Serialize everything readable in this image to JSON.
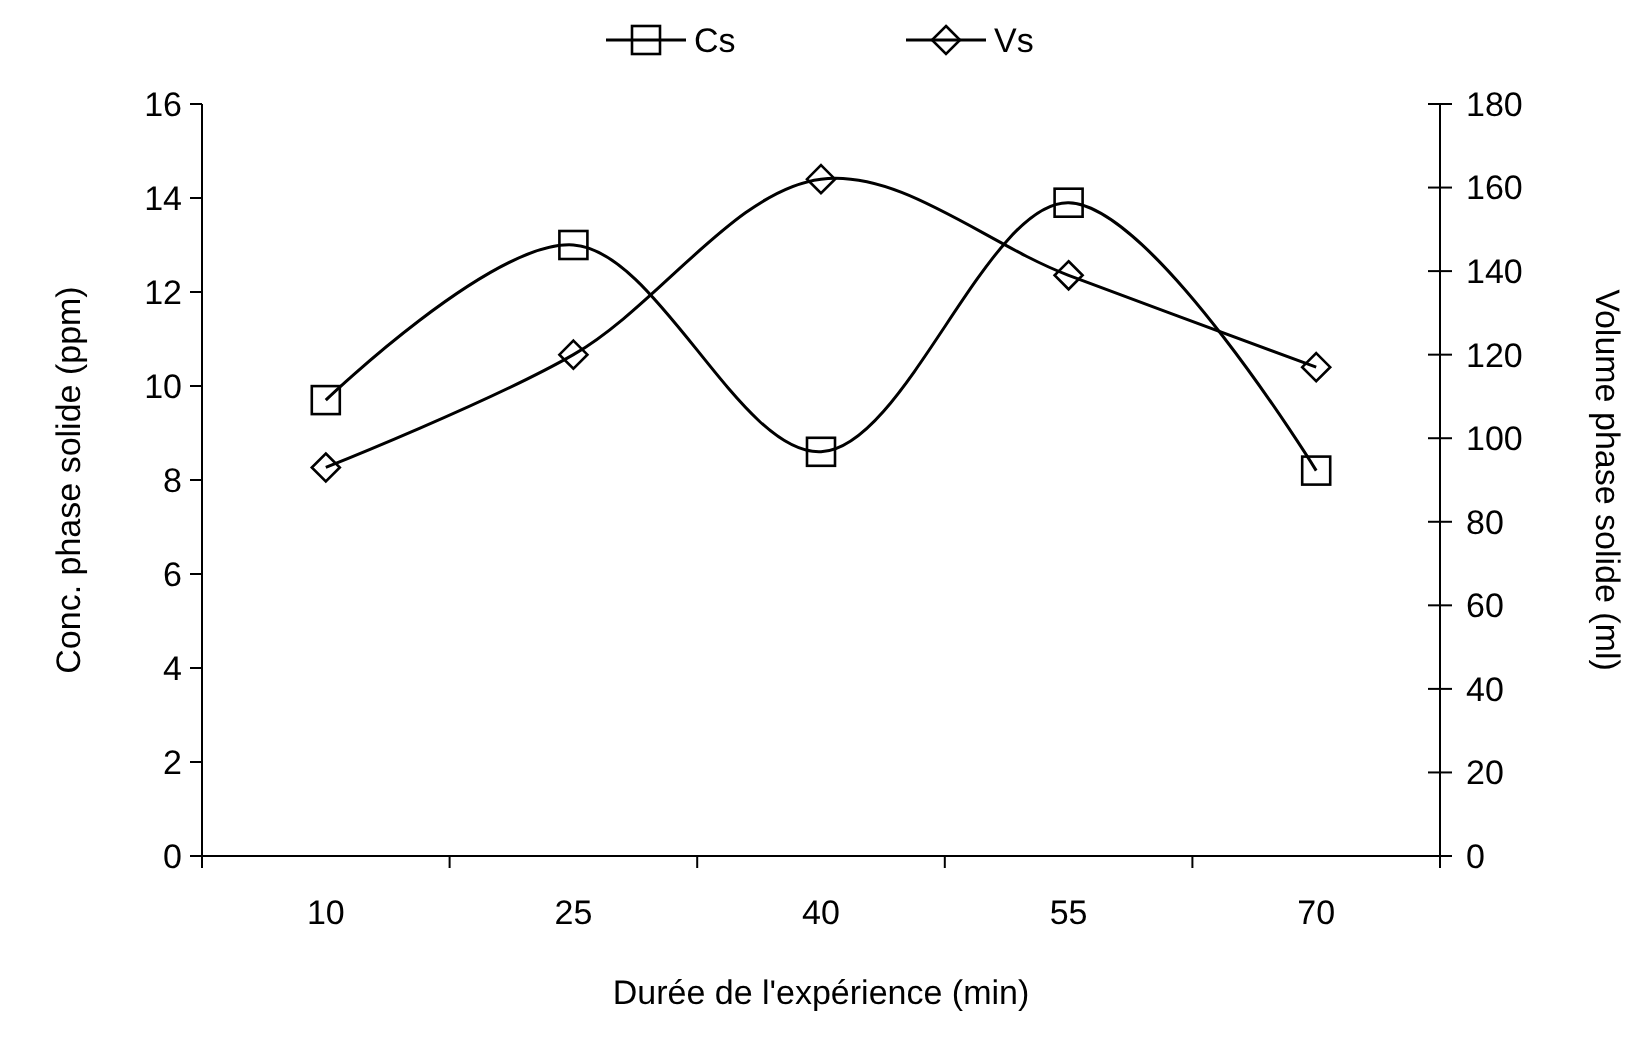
{
  "chart_data": {
    "type": "line",
    "xlabel": "Durée de l'expérience (min)",
    "ylabel": "Conc. phase solide (ppm)",
    "y2label": "Volume phase solide (ml)",
    "categories": [
      "10",
      "25",
      "40",
      "55",
      "70"
    ],
    "series": [
      {
        "name": "Cs",
        "color": "#000000",
        "marker": "square",
        "values": [
          9.7,
          13.0,
          8.6,
          13.9,
          8.2
        ]
      },
      {
        "name": "Vs",
        "color": "#000000",
        "marker": "diamond",
        "axis": "y2",
        "values": [
          93,
          120,
          162,
          139,
          117
        ]
      }
    ],
    "ylim": [
      0,
      16
    ],
    "yticks": [
      0,
      2,
      4,
      6,
      8,
      10,
      12,
      14,
      16
    ],
    "y2lim": [
      0,
      180
    ],
    "y2ticks": [
      0,
      20,
      40,
      60,
      80,
      100,
      120,
      140,
      160,
      180
    ],
    "grid": false,
    "legend": "top",
    "line_style": "solid"
  }
}
